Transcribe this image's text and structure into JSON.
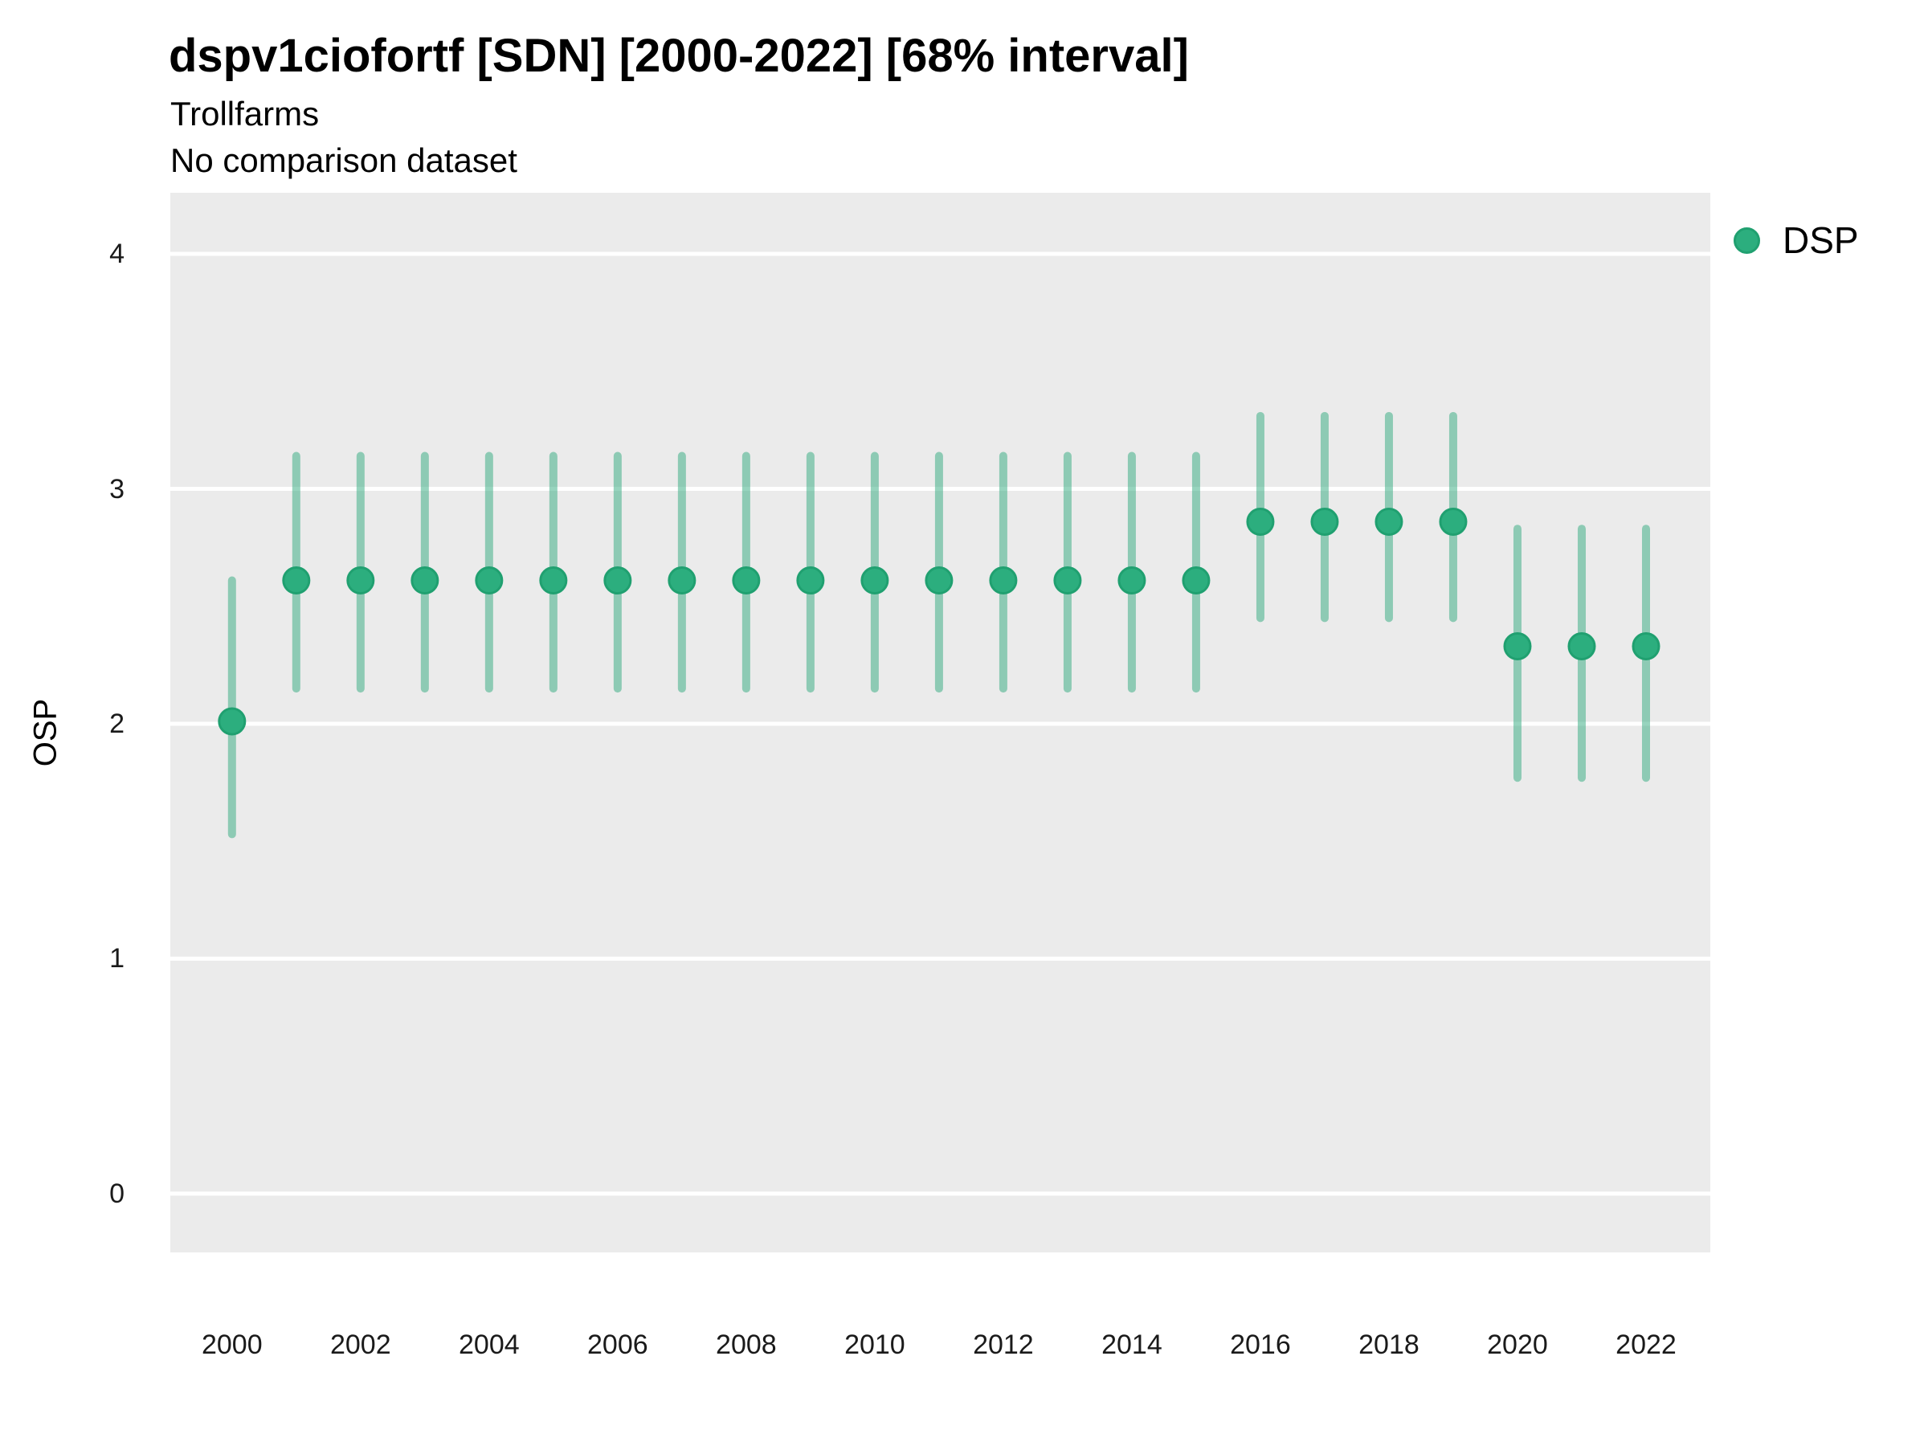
{
  "header": {
    "title": "dspv1ciofortf [SDN] [2000-2022] [68% interval]",
    "subtitle": "Trollfarms",
    "note": "No comparison dataset"
  },
  "axes": {
    "y_title": "OSP",
    "x_title": ""
  },
  "legend": {
    "position": "right",
    "items": [
      {
        "label": "DSP",
        "color": "#2cae7e"
      }
    ]
  },
  "chart_data": {
    "type": "scatter",
    "title": "dspv1ciofortf [SDN] [2000-2022] [68% interval]",
    "subtitle": "Trollfarms",
    "note": "No comparison dataset",
    "xlabel": "",
    "ylabel": "OSP",
    "interval": "68%",
    "grid": "horizontal-major-only",
    "legend_position": "right",
    "x": [
      2000,
      2001,
      2002,
      2003,
      2004,
      2005,
      2006,
      2007,
      2008,
      2009,
      2010,
      2011,
      2012,
      2013,
      2014,
      2015,
      2016,
      2017,
      2018,
      2019,
      2020,
      2021,
      2022
    ],
    "series": [
      {
        "name": "DSP",
        "values": [
          2.01,
          2.61,
          2.61,
          2.61,
          2.61,
          2.61,
          2.61,
          2.61,
          2.61,
          2.61,
          2.61,
          2.61,
          2.61,
          2.61,
          2.61,
          2.61,
          2.86,
          2.86,
          2.86,
          2.86,
          2.33,
          2.33,
          2.33
        ],
        "lower": [
          1.53,
          2.15,
          2.15,
          2.15,
          2.15,
          2.15,
          2.15,
          2.15,
          2.15,
          2.15,
          2.15,
          2.15,
          2.15,
          2.15,
          2.15,
          2.15,
          2.45,
          2.45,
          2.45,
          2.45,
          1.77,
          1.77,
          1.77
        ],
        "upper": [
          2.61,
          3.14,
          3.14,
          3.14,
          3.14,
          3.14,
          3.14,
          3.14,
          3.14,
          3.14,
          3.14,
          3.14,
          3.14,
          3.14,
          3.14,
          3.14,
          3.31,
          3.31,
          3.31,
          3.31,
          2.83,
          2.83,
          2.83
        ]
      }
    ],
    "xticks": [
      2000,
      2002,
      2004,
      2006,
      2008,
      2010,
      2012,
      2014,
      2016,
      2018,
      2020,
      2022
    ],
    "yticks": [
      0,
      1,
      2,
      3,
      4
    ],
    "xlim": [
      1999.04,
      2023.0
    ],
    "ylim": [
      -0.25,
      4.26
    ],
    "colors": {
      "point_fill": "#2cae7e",
      "point_stroke": "#20a070",
      "errorbar": "rgba(38,166,120,0.48)",
      "panel_bg": "#ebebeb",
      "gridline": "#ffffff"
    }
  }
}
